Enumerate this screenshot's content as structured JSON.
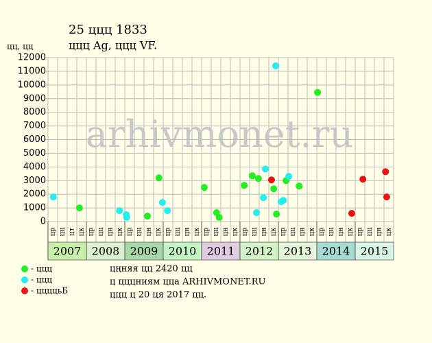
{
  "chart_data": {
    "type": "scatter",
    "title": "25 ццц 1833",
    "subtitle": "ццц Ag, ццц VF.",
    "y_label": "цц, цц",
    "watermark": "arhivmonet.ru",
    "xlim": [
      2007,
      2016
    ],
    "xticks": [
      2007,
      2008,
      2009,
      2010,
      2011,
      2012,
      2013,
      2014,
      2015
    ],
    "year_colors": [
      "#c8f0a8",
      "#dcf0d0",
      "#a8d8a8",
      "#c4f4c4",
      "#e0cce0",
      "#d4f4c8",
      "#e4f4d8",
      "#a4dcd4",
      "#d8f4e4"
    ],
    "sub_labels": [
      "цр",
      "цц",
      "цт",
      "цк",
      "цр",
      "цц",
      "цн",
      "цк",
      "цр",
      "цц",
      "цн",
      "цк",
      "цр",
      "цц",
      "цн",
      "цк",
      "цр",
      "цц",
      "цн",
      "цк",
      "цр",
      "цц",
      "цн",
      "цк",
      "цр",
      "цц",
      "цн",
      "цк",
      "цр",
      "цц",
      "цн",
      "цк",
      "цр",
      "цц",
      "цн",
      "цк"
    ],
    "ylim": [
      0,
      12000
    ],
    "yticks": [
      0,
      1000,
      2000,
      3000,
      4000,
      5000,
      6000,
      7000,
      8000,
      9000,
      10000,
      11000,
      12000
    ],
    "grid": true,
    "series": [
      {
        "name": "- ццц",
        "color": "#22ee22",
        "x": [
          2007.82,
          2009.59,
          2009.89,
          2011.07,
          2011.39,
          2011.46,
          2012.11,
          2012.32,
          2012.48,
          2012.88,
          2012.95,
          2013.2,
          2013.54,
          2014.02
        ],
        "values": [
          1000,
          400,
          3200,
          2500,
          650,
          300,
          2650,
          3350,
          3150,
          2400,
          550,
          3000,
          2600,
          9450
        ]
      },
      {
        "name": "- ццц",
        "color": "#22eeee",
        "x": [
          2007.14,
          2008.86,
          2009.04,
          2009.05,
          2009.98,
          2010.11,
          2012.43,
          2012.61,
          2012.66,
          2012.93,
          2013.07,
          2013.13,
          2013.27
        ],
        "values": [
          1800,
          800,
          500,
          300,
          1400,
          800,
          650,
          1750,
          3850,
          11400,
          1450,
          1550,
          3300
        ]
      },
      {
        "name": "- ццццьБ",
        "color": "#ee1111",
        "x": [
          2012.82,
          2014.91,
          2015.2,
          2015.79,
          2015.82
        ],
        "values": [
          3050,
          600,
          3100,
          3650,
          1800
        ]
      }
    ],
    "notes": [
      "цңняя цц 2420 цц",
      "ц цццниям цца ARHIVMONET.RU",
      "ццц ц 20 ця 2017 цц."
    ]
  }
}
